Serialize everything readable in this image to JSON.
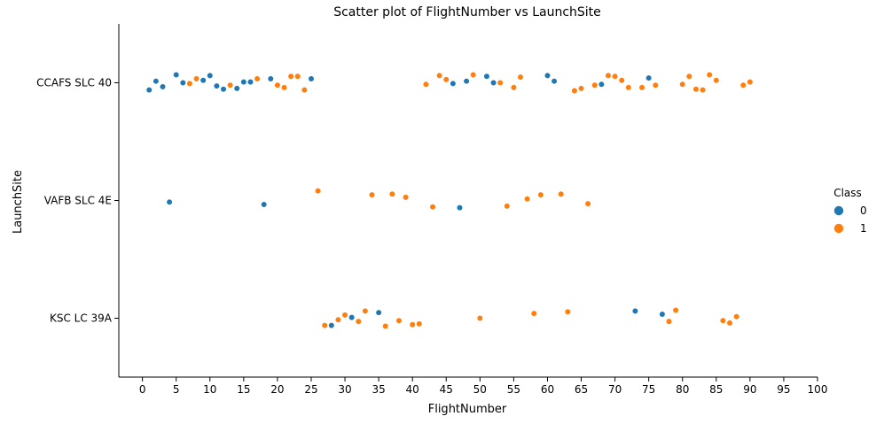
{
  "chart_data": {
    "type": "scatter",
    "title": "Scatter plot of FlightNumber vs LaunchSite",
    "xlabel": "FlightNumber",
    "ylabel": "LaunchSite",
    "xlim": [
      -3.5,
      100
    ],
    "x_ticks": [
      0,
      5,
      10,
      15,
      20,
      25,
      30,
      35,
      40,
      45,
      50,
      55,
      60,
      65,
      70,
      75,
      80,
      85,
      90,
      95,
      100
    ],
    "x_tick_labels": [
      "0",
      "5",
      "10",
      "15",
      "20",
      "25",
      "30",
      "35",
      "40",
      "45",
      "50",
      "55",
      "60",
      "65",
      "70",
      "75",
      "80",
      "85",
      "90",
      "95",
      "100"
    ],
    "categories": [
      "CCAFS SLC 40",
      "VAFB SLC 4E",
      "KSC LC 39A"
    ],
    "legend": {
      "title": "Class",
      "position": "right"
    },
    "grid": false,
    "series": [
      {
        "name": "0",
        "color": "#1f77b4",
        "points": [
          [
            1,
            "CCAFS SLC 40",
            -0.09
          ],
          [
            2,
            "CCAFS SLC 40",
            0.02
          ],
          [
            3,
            "CCAFS SLC 40",
            -0.05
          ],
          [
            5,
            "CCAFS SLC 40",
            0.1
          ],
          [
            6,
            "CCAFS SLC 40",
            0.0
          ],
          [
            9,
            "CCAFS SLC 40",
            0.03
          ],
          [
            10,
            "CCAFS SLC 40",
            0.09
          ],
          [
            11,
            "CCAFS SLC 40",
            -0.04
          ],
          [
            12,
            "CCAFS SLC 40",
            -0.08
          ],
          [
            14,
            "CCAFS SLC 40",
            -0.07
          ],
          [
            15,
            "CCAFS SLC 40",
            0.01
          ],
          [
            16,
            "CCAFS SLC 40",
            0.01
          ],
          [
            19,
            "CCAFS SLC 40",
            0.05
          ],
          [
            25,
            "CCAFS SLC 40",
            0.05
          ],
          [
            46,
            "CCAFS SLC 40",
            -0.01
          ],
          [
            48,
            "CCAFS SLC 40",
            0.02
          ],
          [
            51,
            "CCAFS SLC 40",
            0.08
          ],
          [
            52,
            "CCAFS SLC 40",
            0.0
          ],
          [
            60,
            "CCAFS SLC 40",
            0.09
          ],
          [
            61,
            "CCAFS SLC 40",
            0.02
          ],
          [
            68,
            "CCAFS SLC 40",
            -0.02
          ],
          [
            75,
            "CCAFS SLC 40",
            0.06
          ],
          [
            4,
            "VAFB SLC 4E",
            -0.02
          ],
          [
            18,
            "VAFB SLC 4E",
            -0.05
          ],
          [
            47,
            "VAFB SLC 4E",
            -0.09
          ],
          [
            28,
            "KSC LC 39A",
            -0.09
          ],
          [
            31,
            "KSC LC 39A",
            0.01
          ],
          [
            35,
            "KSC LC 39A",
            0.07
          ],
          [
            73,
            "KSC LC 39A",
            0.09
          ],
          [
            77,
            "KSC LC 39A",
            0.05
          ]
        ]
      },
      {
        "name": "1",
        "color": "#ff7f0e",
        "points": [
          [
            7,
            "CCAFS SLC 40",
            -0.01
          ],
          [
            8,
            "CCAFS SLC 40",
            0.05
          ],
          [
            13,
            "CCAFS SLC 40",
            -0.03
          ],
          [
            17,
            "CCAFS SLC 40",
            0.05
          ],
          [
            20,
            "CCAFS SLC 40",
            -0.03
          ],
          [
            21,
            "CCAFS SLC 40",
            -0.06
          ],
          [
            22,
            "CCAFS SLC 40",
            0.08
          ],
          [
            23,
            "CCAFS SLC 40",
            0.08
          ],
          [
            24,
            "CCAFS SLC 40",
            -0.09
          ],
          [
            42,
            "CCAFS SLC 40",
            -0.02
          ],
          [
            44,
            "CCAFS SLC 40",
            0.09
          ],
          [
            45,
            "CCAFS SLC 40",
            0.04
          ],
          [
            49,
            "CCAFS SLC 40",
            0.1
          ],
          [
            53,
            "CCAFS SLC 40",
            0.0
          ],
          [
            55,
            "CCAFS SLC 40",
            -0.06
          ],
          [
            56,
            "CCAFS SLC 40",
            0.07
          ],
          [
            64,
            "CCAFS SLC 40",
            -0.1
          ],
          [
            65,
            "CCAFS SLC 40",
            -0.07
          ],
          [
            67,
            "CCAFS SLC 40",
            -0.03
          ],
          [
            69,
            "CCAFS SLC 40",
            0.09
          ],
          [
            70,
            "CCAFS SLC 40",
            0.08
          ],
          [
            71,
            "CCAFS SLC 40",
            0.03
          ],
          [
            72,
            "CCAFS SLC 40",
            -0.06
          ],
          [
            74,
            "CCAFS SLC 40",
            -0.06
          ],
          [
            76,
            "CCAFS SLC 40",
            -0.03
          ],
          [
            80,
            "CCAFS SLC 40",
            -0.02
          ],
          [
            81,
            "CCAFS SLC 40",
            0.08
          ],
          [
            82,
            "CCAFS SLC 40",
            -0.08
          ],
          [
            83,
            "CCAFS SLC 40",
            -0.09
          ],
          [
            84,
            "CCAFS SLC 40",
            0.1
          ],
          [
            85,
            "CCAFS SLC 40",
            0.03
          ],
          [
            89,
            "CCAFS SLC 40",
            -0.03
          ],
          [
            90,
            "CCAFS SLC 40",
            0.01
          ],
          [
            26,
            "VAFB SLC 4E",
            0.12
          ],
          [
            34,
            "VAFB SLC 4E",
            0.07
          ],
          [
            37,
            "VAFB SLC 4E",
            0.08
          ],
          [
            39,
            "VAFB SLC 4E",
            0.04
          ],
          [
            43,
            "VAFB SLC 4E",
            -0.08
          ],
          [
            54,
            "VAFB SLC 4E",
            -0.07
          ],
          [
            57,
            "VAFB SLC 4E",
            0.02
          ],
          [
            59,
            "VAFB SLC 4E",
            0.07
          ],
          [
            62,
            "VAFB SLC 4E",
            0.08
          ],
          [
            66,
            "VAFB SLC 4E",
            -0.04
          ],
          [
            27,
            "KSC LC 39A",
            -0.09
          ],
          [
            29,
            "KSC LC 39A",
            -0.02
          ],
          [
            30,
            "KSC LC 39A",
            0.04
          ],
          [
            32,
            "KSC LC 39A",
            -0.04
          ],
          [
            33,
            "KSC LC 39A",
            0.09
          ],
          [
            36,
            "KSC LC 39A",
            -0.1
          ],
          [
            38,
            "KSC LC 39A",
            -0.03
          ],
          [
            40,
            "KSC LC 39A",
            -0.08
          ],
          [
            41,
            "KSC LC 39A",
            -0.07
          ],
          [
            50,
            "KSC LC 39A",
            0.0
          ],
          [
            58,
            "KSC LC 39A",
            0.06
          ],
          [
            63,
            "KSC LC 39A",
            0.08
          ],
          [
            78,
            "KSC LC 39A",
            -0.04
          ],
          [
            79,
            "KSC LC 39A",
            0.1
          ],
          [
            86,
            "KSC LC 39A",
            -0.03
          ],
          [
            87,
            "KSC LC 39A",
            -0.06
          ],
          [
            88,
            "KSC LC 39A",
            0.02
          ]
        ]
      }
    ]
  }
}
